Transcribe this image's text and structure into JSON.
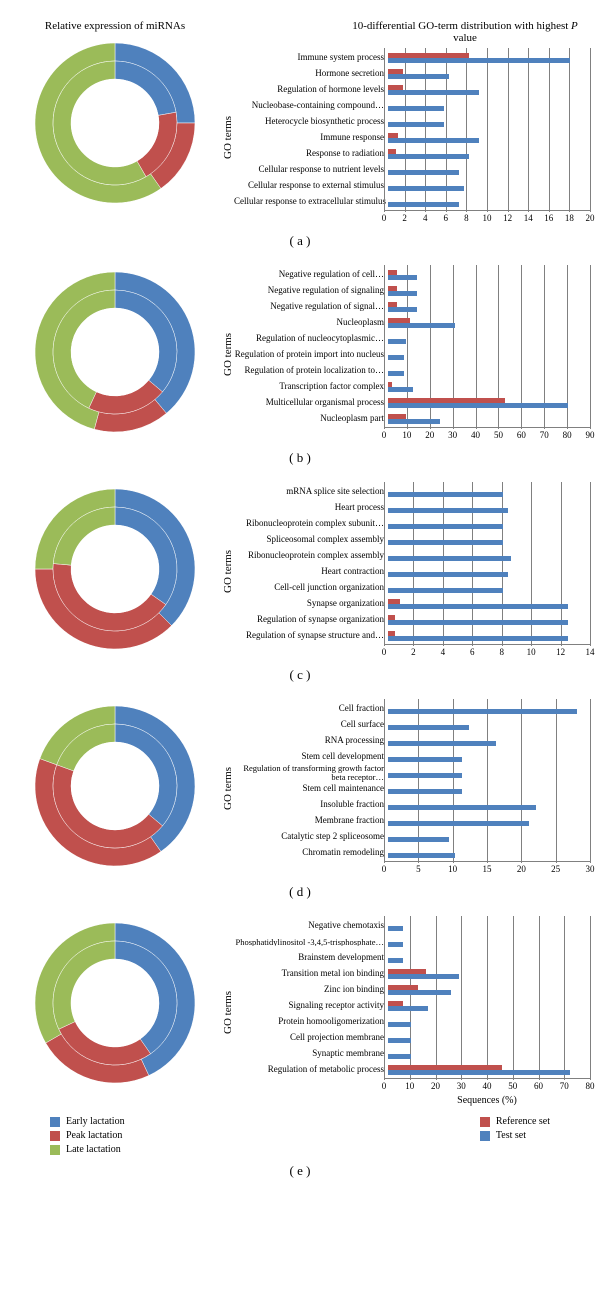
{
  "colors": {
    "blue": "#4f81bd",
    "red": "#c0504d",
    "green": "#9bbb59",
    "grid": "#808080",
    "bg": "#ffffff"
  },
  "headings": {
    "left": "Relative expression of miRNAs",
    "right": "10-differential GO-term distribution with highest P value"
  },
  "axis": {
    "y": "GO terms",
    "x": "Sequences (%)"
  },
  "legend_left": [
    {
      "label": "Early lactation",
      "color": "#4f81bd"
    },
    {
      "label": "Peak lactation",
      "color": "#c0504d"
    },
    {
      "label": "Late lactation",
      "color": "#9bbb59"
    }
  ],
  "legend_right": [
    {
      "label": "Reference set",
      "color": "#c0504d"
    },
    {
      "label": "Test set",
      "color": "#4f81bd"
    }
  ],
  "panels": [
    {
      "id": "a",
      "letter": "( a )",
      "donut": {
        "outer": {
          "blue": 90,
          "red": 55,
          "green": 215
        },
        "inner": {
          "blue": 80,
          "red": 70,
          "green": 210
        }
      },
      "xmax": 20,
      "xstep": 2,
      "rows": [
        {
          "label": "Immune system process",
          "ref": 8,
          "test": 18
        },
        {
          "label": "Hormone secretion",
          "ref": 1.5,
          "test": 6
        },
        {
          "label": "Regulation of hormone levels",
          "ref": 1.5,
          "test": 9
        },
        {
          "label": "Nucleobase-containing compound…",
          "ref": 0,
          "test": 5.5
        },
        {
          "label": "Heterocycle biosynthetic process",
          "ref": 0,
          "test": 5.5
        },
        {
          "label": "Immune response",
          "ref": 1,
          "test": 9
        },
        {
          "label": "Response to radiation",
          "ref": 0.8,
          "test": 8
        },
        {
          "label": "Cellular response to nutrient levels",
          "ref": 0,
          "test": 7
        },
        {
          "label": "Cellular response to external stimulus",
          "ref": 0,
          "test": 7.5
        },
        {
          "label": "Cellular response to extracellular stimulus",
          "ref": 0,
          "test": 7
        }
      ]
    },
    {
      "id": "b",
      "letter": "( b )",
      "donut": {
        "outer": {
          "blue": 140,
          "red": 55,
          "green": 165
        },
        "inner": {
          "blue": 130,
          "red": 75,
          "green": 155
        }
      },
      "xmax": 90,
      "xstep": 10,
      "rows": [
        {
          "label": "Negative regulation of cell…",
          "ref": 4,
          "test": 13
        },
        {
          "label": "Negative regulation of signaling",
          "ref": 4,
          "test": 13
        },
        {
          "label": "Negative regulation of signal…",
          "ref": 4,
          "test": 13
        },
        {
          "label": "Nucleoplasm",
          "ref": 10,
          "test": 30
        },
        {
          "label": "Regulation of nucleocytoplasmic…",
          "ref": 0,
          "test": 8
        },
        {
          "label": "Regulation of protein import into nucleus",
          "ref": 0,
          "test": 7
        },
        {
          "label": "Regulation of protein localization to…",
          "ref": 0,
          "test": 7
        },
        {
          "label": "Transcription factor complex",
          "ref": 2,
          "test": 11
        },
        {
          "label": "Multicellular organismal process",
          "ref": 52,
          "test": 80
        },
        {
          "label": "Nucleoplasm part",
          "ref": 8,
          "test": 23
        }
      ]
    },
    {
      "id": "c",
      "letter": "( c )",
      "donut": {
        "outer": {
          "blue": 135,
          "red": 135,
          "green": 90
        },
        "inner": {
          "blue": 125,
          "red": 150,
          "green": 85
        }
      },
      "xmax": 14,
      "xstep": 2,
      "rows": [
        {
          "label": "mRNA splice site selection",
          "ref": 0,
          "test": 8
        },
        {
          "label": "Heart process",
          "ref": 0,
          "test": 8.3
        },
        {
          "label": "Ribonucleoprotein complex subunit…",
          "ref": 0,
          "test": 8
        },
        {
          "label": "Spliceosomal complex assembly",
          "ref": 0,
          "test": 8
        },
        {
          "label": "Ribonucleoprotein complex assembly",
          "ref": 0,
          "test": 8.5
        },
        {
          "label": "Heart contraction",
          "ref": 0,
          "test": 8.3
        },
        {
          "label": "Cell-cell junction organization",
          "ref": 0,
          "test": 8
        },
        {
          "label": "Synapse organization",
          "ref": 0.8,
          "test": 12.5
        },
        {
          "label": "Regulation of synapse organization",
          "ref": 0.5,
          "test": 12.5
        },
        {
          "label": "Regulation of synapse structure and…",
          "ref": 0.5,
          "test": 12.5
        }
      ]
    },
    {
      "id": "d",
      "letter": "( d )",
      "donut": {
        "outer": {
          "blue": 145,
          "red": 145,
          "green": 70
        },
        "inner": {
          "blue": 130,
          "red": 160,
          "green": 70
        }
      },
      "xmax": 30,
      "xstep": 5,
      "rows": [
        {
          "label": "Cell fraction",
          "ref": 0,
          "test": 28
        },
        {
          "label": "Cell surface",
          "ref": 0,
          "test": 12
        },
        {
          "label": "RNA processing",
          "ref": 0,
          "test": 16
        },
        {
          "label": "Stem cell development",
          "ref": 0,
          "test": 11
        },
        {
          "label": "Regulation of transforming growth factor beta receptor…",
          "ref": 0,
          "test": 11,
          "twoline": true
        },
        {
          "label": "Stem cell maintenance",
          "ref": 0,
          "test": 11
        },
        {
          "label": "Insoluble fraction",
          "ref": 0,
          "test": 22
        },
        {
          "label": "Membrane fraction",
          "ref": 0,
          "test": 21
        },
        {
          "label": "Catalytic step 2 spliceosome",
          "ref": 0,
          "test": 9
        },
        {
          "label": "Chromatin remodeling",
          "ref": 0,
          "test": 10
        }
      ]
    },
    {
      "id": "e",
      "letter": "( e )",
      "donut": {
        "outer": {
          "blue": 155,
          "red": 85,
          "green": 120
        },
        "inner": {
          "blue": 145,
          "red": 100,
          "green": 115
        }
      },
      "xmax": 80,
      "xstep": 10,
      "rows": [
        {
          "label": "Negative chemotaxis",
          "ref": 0,
          "test": 6
        },
        {
          "label": "Phosphatidylinositol -3,4,5-trisphosphate…",
          "ref": 0,
          "test": 6,
          "twoline": true
        },
        {
          "label": "Brainstem development",
          "ref": 0,
          "test": 6
        },
        {
          "label": "Transition metal ion binding",
          "ref": 15,
          "test": 28
        },
        {
          "label": "Zinc ion binding",
          "ref": 12,
          "test": 25
        },
        {
          "label": "Signaling receptor activity",
          "ref": 6,
          "test": 16
        },
        {
          "label": "Protein homooligomerization",
          "ref": 0,
          "test": 9
        },
        {
          "label": "Cell projection membrane",
          "ref": 0,
          "test": 9
        },
        {
          "label": "Synaptic membrane",
          "ref": 0,
          "test": 9
        },
        {
          "label": "Regulation of metabolic process",
          "ref": 45,
          "test": 72
        }
      ]
    }
  ]
}
